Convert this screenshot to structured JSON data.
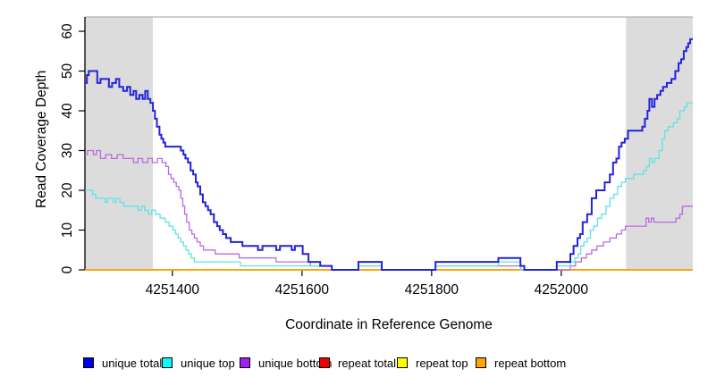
{
  "figure": {
    "background": "#ffffff"
  },
  "chart_data": {
    "type": "line",
    "subtype": "step",
    "title": "",
    "xlabel": "Coordinate in Reference Genome",
    "ylabel": "Read Coverage Depth",
    "xlim": [
      4251265,
      4252203
    ],
    "ylim": [
      0,
      63.6
    ],
    "grid": false,
    "legend_position": "bottom",
    "axis_color": "#000000",
    "top_border_color": "#b0b0b0",
    "x_ticks": {
      "values": [
        4251400,
        4251600,
        4251800,
        4252000
      ],
      "labels": [
        "4251400",
        "4251600",
        "4251800",
        "4252000"
      ]
    },
    "y_ticks": {
      "values": [
        0,
        10,
        20,
        30,
        40,
        50,
        60
      ],
      "labels": [
        "0",
        "10",
        "20",
        "30",
        "40",
        "50",
        "60"
      ]
    },
    "shaded_regions": [
      {
        "from": 4251265,
        "to": 4251370,
        "color": "#dcdcdc"
      },
      {
        "from": 4252100,
        "to": 4252203,
        "color": "#dcdcdc"
      }
    ],
    "draw_order": [
      3,
      4,
      5,
      2,
      1,
      0
    ],
    "series": [
      {
        "name": "unique-total",
        "label": "unique total",
        "color": "#2323de",
        "legend_color": "#0000ee",
        "width": 2,
        "points": [
          [
            4251265,
            47
          ],
          [
            4251268,
            49
          ],
          [
            4251271,
            50
          ],
          [
            4251284,
            47
          ],
          [
            4251289,
            48
          ],
          [
            4251297,
            48
          ],
          [
            4251302,
            46
          ],
          [
            4251307,
            47
          ],
          [
            4251313,
            48
          ],
          [
            4251318,
            46
          ],
          [
            4251324,
            45
          ],
          [
            4251330,
            46
          ],
          [
            4251335,
            44
          ],
          [
            4251340,
            45
          ],
          [
            4251344,
            43
          ],
          [
            4251349,
            44
          ],
          [
            4251354,
            43
          ],
          [
            4251358,
            45
          ],
          [
            4251362,
            43
          ],
          [
            4251366,
            42
          ],
          [
            4251370,
            40
          ],
          [
            4251373,
            38
          ],
          [
            4251376,
            36
          ],
          [
            4251380,
            34
          ],
          [
            4251383,
            33
          ],
          [
            4251386,
            32
          ],
          [
            4251389,
            31
          ],
          [
            4251413,
            30
          ],
          [
            4251417,
            29
          ],
          [
            4251420,
            28
          ],
          [
            4251424,
            27
          ],
          [
            4251428,
            25
          ],
          [
            4251432,
            24
          ],
          [
            4251436,
            22
          ],
          [
            4251439,
            21
          ],
          [
            4251443,
            19
          ],
          [
            4251447,
            17
          ],
          [
            4251451,
            16
          ],
          [
            4251455,
            15
          ],
          [
            4251459,
            14
          ],
          [
            4251464,
            12
          ],
          [
            4251469,
            11
          ],
          [
            4251473,
            10
          ],
          [
            4251478,
            9
          ],
          [
            4251483,
            8
          ],
          [
            4251490,
            7
          ],
          [
            4251502,
            7
          ],
          [
            4251508,
            6
          ],
          [
            4251524,
            6
          ],
          [
            4251532,
            5
          ],
          [
            4251539,
            6
          ],
          [
            4251551,
            6
          ],
          [
            4251560,
            5
          ],
          [
            4251566,
            6
          ],
          [
            4251576,
            6
          ],
          [
            4251584,
            5
          ],
          [
            4251589,
            6
          ],
          [
            4251597,
            6
          ],
          [
            4251601,
            4
          ],
          [
            4251610,
            2
          ],
          [
            4251628,
            1
          ],
          [
            4251641,
            1
          ],
          [
            4251646,
            0
          ],
          [
            4251684,
            0
          ],
          [
            4251687,
            2
          ],
          [
            4251720,
            2
          ],
          [
            4251723,
            0
          ],
          [
            4251803,
            0
          ],
          [
            4251806,
            2
          ],
          [
            4251900,
            2
          ],
          [
            4251903,
            3
          ],
          [
            4251934,
            3
          ],
          [
            4251937,
            1
          ],
          [
            4251943,
            0
          ],
          [
            4251990,
            0
          ],
          [
            4251993,
            2
          ],
          [
            4252011,
            2
          ],
          [
            4252014,
            4
          ],
          [
            4252019,
            6
          ],
          [
            4252025,
            8
          ],
          [
            4252029,
            9
          ],
          [
            4252033,
            12
          ],
          [
            4252040,
            14
          ],
          [
            4252047,
            18
          ],
          [
            4252054,
            20
          ],
          [
            4252067,
            22
          ],
          [
            4252075,
            24
          ],
          [
            4252080,
            27
          ],
          [
            4252085,
            28
          ],
          [
            4252089,
            31
          ],
          [
            4252093,
            32
          ],
          [
            4252098,
            33
          ],
          [
            4252103,
            35
          ],
          [
            4252125,
            36
          ],
          [
            4252129,
            38
          ],
          [
            4252133,
            40
          ],
          [
            4252136,
            43
          ],
          [
            4252140,
            41
          ],
          [
            4252144,
            43
          ],
          [
            4252148,
            44
          ],
          [
            4252153,
            45
          ],
          [
            4252157,
            46
          ],
          [
            4252163,
            47
          ],
          [
            4252170,
            48
          ],
          [
            4252176,
            50
          ],
          [
            4252181,
            52
          ],
          [
            4252185,
            53
          ],
          [
            4252189,
            55
          ],
          [
            4252193,
            56
          ],
          [
            4252196,
            57
          ],
          [
            4252199,
            58
          ]
        ]
      },
      {
        "name": "unique-top",
        "label": "unique top",
        "color": "#5fe3e6",
        "legend_color": "#00ffff",
        "width": 1.3,
        "points": [
          [
            4251265,
            20
          ],
          [
            4251277,
            19
          ],
          [
            4251282,
            18
          ],
          [
            4251291,
            18
          ],
          [
            4251296,
            17
          ],
          [
            4251300,
            18
          ],
          [
            4251309,
            17
          ],
          [
            4251313,
            18
          ],
          [
            4251319,
            17
          ],
          [
            4251325,
            16
          ],
          [
            4251341,
            16
          ],
          [
            4251347,
            15
          ],
          [
            4251352,
            16
          ],
          [
            4251357,
            15
          ],
          [
            4251363,
            14
          ],
          [
            4251368,
            15
          ],
          [
            4251374,
            14
          ],
          [
            4251381,
            13
          ],
          [
            4251389,
            12
          ],
          [
            4251395,
            11
          ],
          [
            4251401,
            10
          ],
          [
            4251405,
            9
          ],
          [
            4251409,
            8
          ],
          [
            4251413,
            7
          ],
          [
            4251417,
            6
          ],
          [
            4251421,
            5
          ],
          [
            4251425,
            4
          ],
          [
            4251429,
            3
          ],
          [
            4251434,
            2
          ],
          [
            4251497,
            2
          ],
          [
            4251505,
            1
          ],
          [
            4251641,
            1
          ],
          [
            4251646,
            0
          ],
          [
            4251687,
            1
          ],
          [
            4251720,
            1
          ],
          [
            4251723,
            0
          ],
          [
            4251806,
            1
          ],
          [
            4251900,
            1
          ],
          [
            4251903,
            2
          ],
          [
            4251934,
            2
          ],
          [
            4251937,
            0
          ],
          [
            4251993,
            1
          ],
          [
            4252011,
            1
          ],
          [
            4252014,
            2
          ],
          [
            4252021,
            3
          ],
          [
            4252026,
            4
          ],
          [
            4252030,
            6
          ],
          [
            4252035,
            7
          ],
          [
            4252040,
            8
          ],
          [
            4252045,
            10
          ],
          [
            4252050,
            11
          ],
          [
            4252056,
            13
          ],
          [
            4252062,
            14
          ],
          [
            4252069,
            16
          ],
          [
            4252075,
            18
          ],
          [
            4252081,
            19
          ],
          [
            4252087,
            21
          ],
          [
            4252093,
            22
          ],
          [
            4252099,
            23
          ],
          [
            4252112,
            24
          ],
          [
            4252127,
            25
          ],
          [
            4252132,
            26
          ],
          [
            4252136,
            28
          ],
          [
            4252140,
            27
          ],
          [
            4252144,
            28
          ],
          [
            4252151,
            30
          ],
          [
            4252156,
            33
          ],
          [
            4252160,
            35
          ],
          [
            4252165,
            36
          ],
          [
            4252173,
            37
          ],
          [
            4252179,
            38
          ],
          [
            4252183,
            40
          ],
          [
            4252190,
            41
          ],
          [
            4252194,
            42
          ]
        ]
      },
      {
        "name": "unique-bottom",
        "label": "unique bottom",
        "color": "#ba6be0",
        "legend_color": "#a020f0",
        "width": 1.3,
        "points": [
          [
            4251265,
            29
          ],
          [
            4251269,
            30
          ],
          [
            4251278,
            29
          ],
          [
            4251283,
            30
          ],
          [
            4251289,
            28
          ],
          [
            4251297,
            29
          ],
          [
            4251306,
            28
          ],
          [
            4251315,
            29
          ],
          [
            4251324,
            28
          ],
          [
            4251340,
            27
          ],
          [
            4251347,
            28
          ],
          [
            4251354,
            27
          ],
          [
            4251362,
            28
          ],
          [
            4251369,
            27
          ],
          [
            4251377,
            28
          ],
          [
            4251384,
            27
          ],
          [
            4251390,
            26
          ],
          [
            4251394,
            24
          ],
          [
            4251398,
            23
          ],
          [
            4251402,
            22
          ],
          [
            4251406,
            21
          ],
          [
            4251410,
            20
          ],
          [
            4251413,
            18
          ],
          [
            4251416,
            16
          ],
          [
            4251419,
            14
          ],
          [
            4251422,
            12
          ],
          [
            4251426,
            10
          ],
          [
            4251430,
            9
          ],
          [
            4251434,
            8
          ],
          [
            4251438,
            7
          ],
          [
            4251443,
            6
          ],
          [
            4251448,
            5
          ],
          [
            4251460,
            5
          ],
          [
            4251466,
            4
          ],
          [
            4251497,
            4
          ],
          [
            4251503,
            3
          ],
          [
            4251554,
            3
          ],
          [
            4251560,
            2
          ],
          [
            4251608,
            2
          ],
          [
            4251613,
            1
          ],
          [
            4251641,
            1
          ],
          [
            4251646,
            0
          ],
          [
            4251687,
            1
          ],
          [
            4251720,
            1
          ],
          [
            4251723,
            0
          ],
          [
            4251806,
            1
          ],
          [
            4251934,
            1
          ],
          [
            4251937,
            0
          ],
          [
            4252014,
            1
          ],
          [
            4252022,
            2
          ],
          [
            4252031,
            3
          ],
          [
            4252039,
            4
          ],
          [
            4252047,
            5
          ],
          [
            4252055,
            6
          ],
          [
            4252065,
            7
          ],
          [
            4252075,
            8
          ],
          [
            4252085,
            9
          ],
          [
            4252093,
            10
          ],
          [
            4252099,
            11
          ],
          [
            4252127,
            11
          ],
          [
            4252131,
            13
          ],
          [
            4252135,
            12
          ],
          [
            4252139,
            13
          ],
          [
            4252143,
            12
          ],
          [
            4252149,
            12
          ],
          [
            4252177,
            13
          ],
          [
            4252183,
            14
          ],
          [
            4252187,
            16
          ],
          [
            4252199,
            16
          ]
        ]
      },
      {
        "name": "repeat-total",
        "label": "repeat total",
        "color": "#ee0000",
        "legend_color": "#ee0000",
        "width": 1.3,
        "points": [
          [
            4251265,
            0
          ],
          [
            4252203,
            0
          ]
        ]
      },
      {
        "name": "repeat-top",
        "label": "repeat top",
        "color": "#ffff00",
        "legend_color": "#ffff00",
        "width": 1.3,
        "points": [
          [
            4251265,
            0
          ],
          [
            4252203,
            0
          ]
        ]
      },
      {
        "name": "repeat-bottom",
        "label": "repeat bottom",
        "color": "#ffa500",
        "legend_color": "#ffa500",
        "width": 1.8,
        "points": [
          [
            4251265,
            0
          ],
          [
            4252203,
            0
          ]
        ]
      }
    ]
  }
}
